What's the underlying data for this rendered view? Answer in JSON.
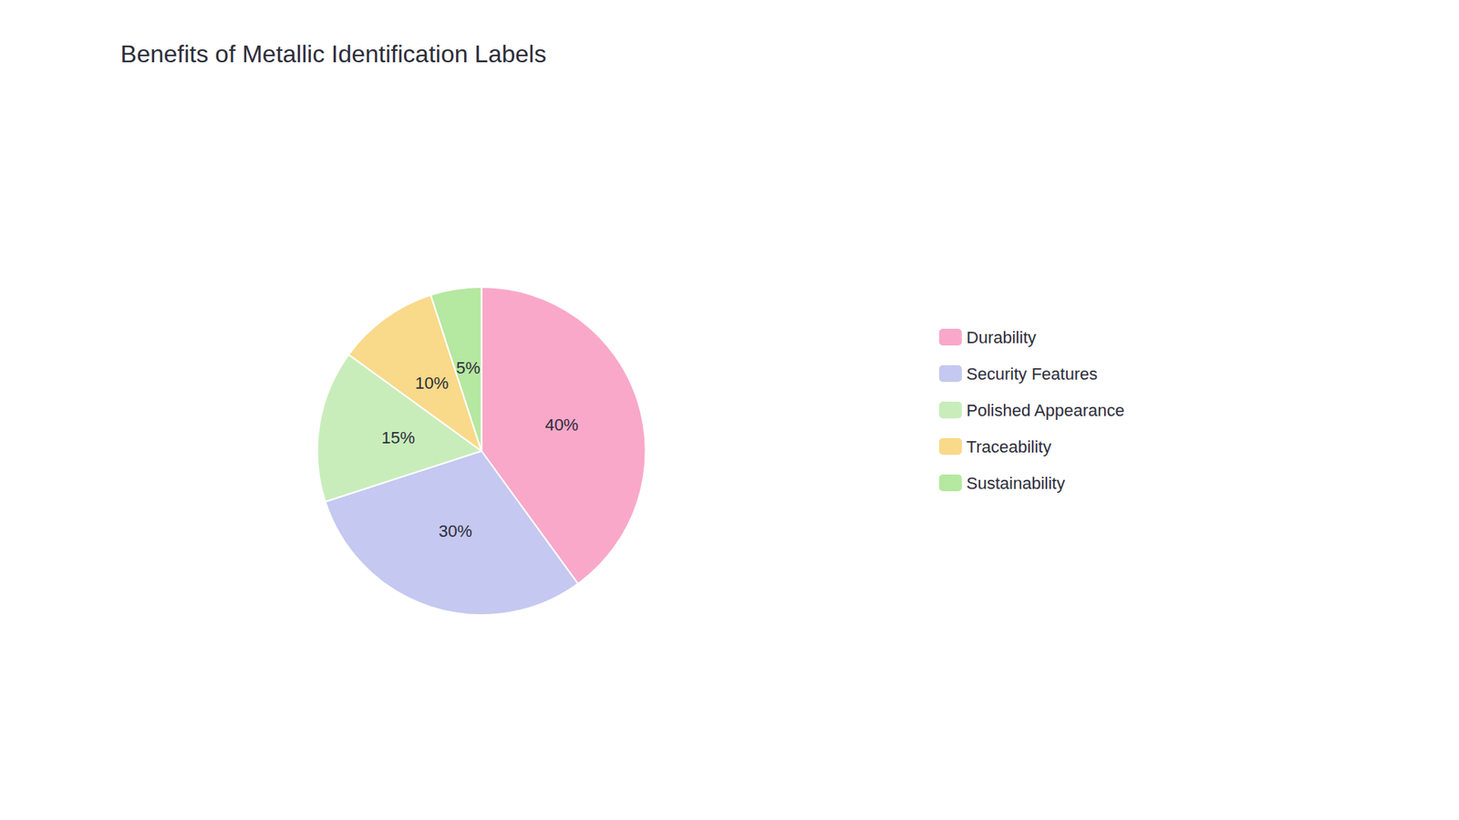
{
  "chart_data": {
    "type": "pie",
    "title": "Benefits of Metallic Identification Labels",
    "categories": [
      "Durability",
      "Security Features",
      "Polished Appearance",
      "Traceability",
      "Sustainability"
    ],
    "values": [
      40,
      30,
      15,
      10,
      5
    ],
    "value_labels": [
      "40%",
      "30%",
      "15%",
      "10%",
      "5%"
    ],
    "colors": [
      "#F9A8C9",
      "#C5C8F0",
      "#C8EDBB",
      "#F9D98A",
      "#B5E8A0"
    ],
    "data_labels": true,
    "legend": "right"
  }
}
